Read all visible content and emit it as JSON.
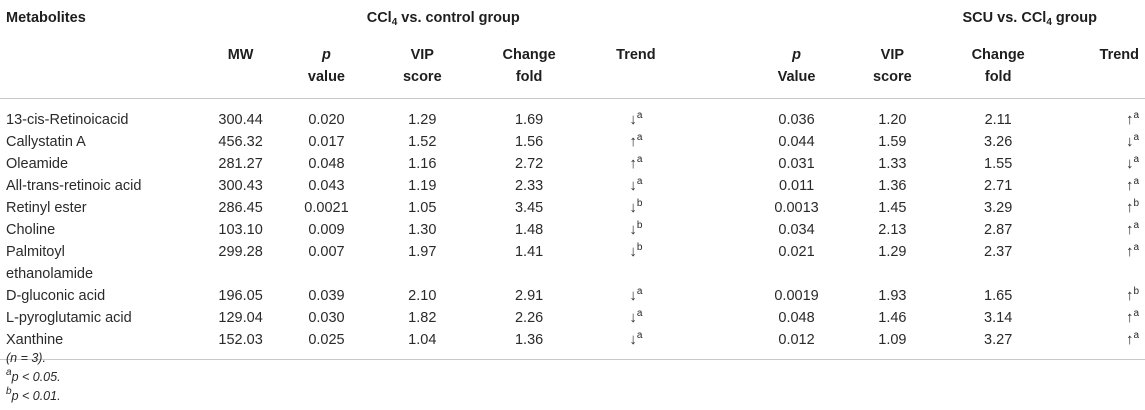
{
  "header": {
    "metabolites": "Metabolites",
    "group1_prefix": "CCl",
    "group1_sub": "4",
    "group1_suffix": " vs. control group",
    "group2_prefix": "SCU vs. CCl",
    "group2_sub": "4",
    "group2_suffix": " group",
    "mw": "MW",
    "p1_line1": "p",
    "p1_line2": "value",
    "vip1_line1": "VIP",
    "vip1_line2": "score",
    "cf1_line1": "Change",
    "cf1_line2": "fold",
    "trend1": "Trend",
    "p2_line1": "p",
    "p2_line2": "Value",
    "vip2_line1": "VIP",
    "vip2_line2": "score",
    "cf2_line1": "Change",
    "cf2_line2": "fold",
    "trend2": "Trend"
  },
  "rows": [
    {
      "name": "13-cis-Retinoicacid",
      "name2": "",
      "mw": "300.44",
      "p1": "0.020",
      "vip1": "1.29",
      "cf1": "1.69",
      "t1": "↓",
      "t1s": "a",
      "p2": "0.036",
      "vip2": "1.20",
      "cf2": "2.11",
      "t2": "↑",
      "t2s": "a"
    },
    {
      "name": "Callystatin A",
      "name2": "",
      "mw": "456.32",
      "p1": "0.017",
      "vip1": "1.52",
      "cf1": "1.56",
      "t1": "↑",
      "t1s": "a",
      "p2": "0.044",
      "vip2": "1.59",
      "cf2": "3.26",
      "t2": "↓",
      "t2s": "a"
    },
    {
      "name": "Oleamide",
      "name2": "",
      "mw": "281.27",
      "p1": "0.048",
      "vip1": "1.16",
      "cf1": "2.72",
      "t1": "↑",
      "t1s": "a",
      "p2": "0.031",
      "vip2": "1.33",
      "cf2": "1.55",
      "t2": "↓",
      "t2s": "a"
    },
    {
      "name": "All-trans-retinoic acid",
      "name2": "",
      "mw": "300.43",
      "p1": "0.043",
      "vip1": "1.19",
      "cf1": "2.33",
      "t1": "↓",
      "t1s": "a",
      "p2": "0.011",
      "vip2": "1.36",
      "cf2": "2.71",
      "t2": "↑",
      "t2s": "a"
    },
    {
      "name": "Retinyl ester",
      "name2": "",
      "mw": "286.45",
      "p1": "0.0021",
      "vip1": "1.05",
      "cf1": "3.45",
      "t1": "↓",
      "t1s": "b",
      "p2": "0.0013",
      "vip2": "1.45",
      "cf2": "3.29",
      "t2": "↑",
      "t2s": "b"
    },
    {
      "name": "Choline",
      "name2": "",
      "mw": "103.10",
      "p1": "0.009",
      "vip1": "1.30",
      "cf1": "1.48",
      "t1": "↓",
      "t1s": "b",
      "p2": "0.034",
      "vip2": "2.13",
      "cf2": "2.87",
      "t2": "↑",
      "t2s": "a"
    },
    {
      "name": "Palmitoyl",
      "name2": "ethanolamide",
      "mw": "299.28",
      "p1": "0.007",
      "vip1": "1.97",
      "cf1": "1.41",
      "t1": "↓",
      "t1s": "b",
      "p2": "0.021",
      "vip2": "1.29",
      "cf2": "2.37",
      "t2": "↑",
      "t2s": "a"
    },
    {
      "name": "D-gluconic acid",
      "name2": "",
      "mw": "196.05",
      "p1": "0.039",
      "vip1": "2.10",
      "cf1": "2.91",
      "t1": "↓",
      "t1s": "a",
      "p2": "0.0019",
      "vip2": "1.93",
      "cf2": "1.65",
      "t2": "↑",
      "t2s": "b"
    },
    {
      "name": "L-pyroglutamic acid",
      "name2": "",
      "mw": "129.04",
      "p1": "0.030",
      "vip1": "1.82",
      "cf1": "2.26",
      "t1": "↓",
      "t1s": "a",
      "p2": "0.048",
      "vip2": "1.46",
      "cf2": "3.14",
      "t2": "↑",
      "t2s": "a"
    },
    {
      "name": "Xanthine",
      "name2": "",
      "mw": "152.03",
      "p1": "0.025",
      "vip1": "1.04",
      "cf1": "1.36",
      "t1": "↓",
      "t1s": "a",
      "p2": "0.012",
      "vip2": "1.09",
      "cf2": "3.27",
      "t2": "↑",
      "t2s": "a"
    }
  ],
  "notes": {
    "n": "(n = 3).",
    "a_sup": "a",
    "a_text": "p < 0.05.",
    "b_sup": "b",
    "b_text": "p < 0.01."
  }
}
